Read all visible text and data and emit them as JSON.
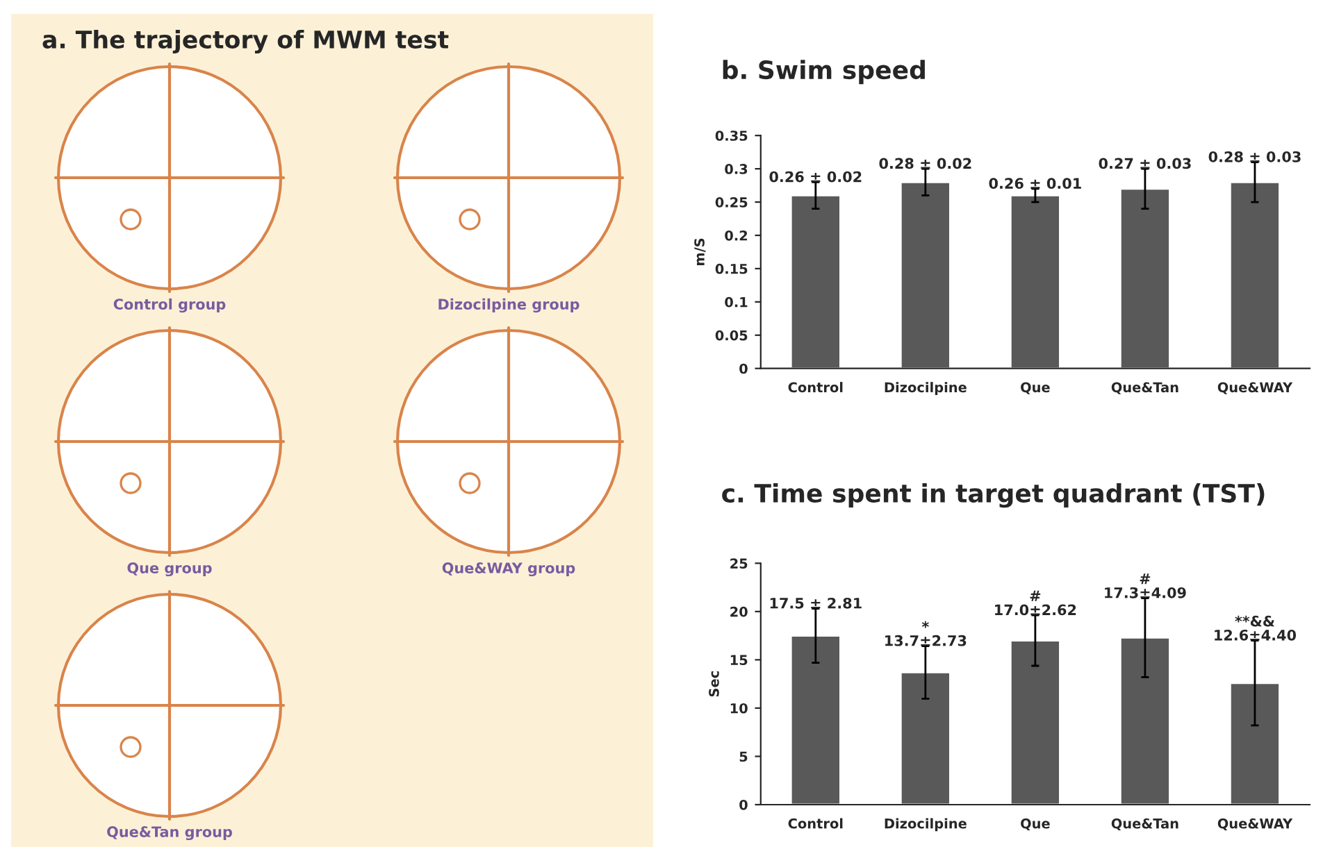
{
  "chart_data": [
    {
      "type": "other",
      "title": "a. The trajectory of MWM test",
      "annotations": [
        "Control group",
        "Dizocilpine group",
        "Que group",
        "Que&WAY group",
        "Que&Tan group"
      ]
    },
    {
      "type": "bar",
      "title": "b. Swim speed",
      "ylabel": "m/S",
      "categories": [
        "Control",
        "Dizocilpine",
        "Que",
        "Que&Tan",
        "Que&WAY"
      ],
      "values": [
        0.26,
        0.28,
        0.26,
        0.27,
        0.28
      ],
      "errors": [
        0.02,
        0.02,
        0.01,
        0.03,
        0.03
      ],
      "value_labels": [
        "0.26 ± 0.02",
        "0.28 ± 0.02",
        "0.26 ± 0.01",
        "0.27 ± 0.03",
        "0.28 ± 0.03"
      ],
      "color": "#595959",
      "ylim": [
        0,
        0.35
      ],
      "yticks": [
        0,
        0.05,
        0.1,
        0.15,
        0.2,
        0.25,
        0.3,
        0.35
      ],
      "grid": false,
      "legend": false
    },
    {
      "type": "bar",
      "title": "c. Time spent in target quadrant (TST)",
      "ylabel": "Sec",
      "categories": [
        "Control",
        "Dizocilpine",
        "Que",
        "Que&Tan",
        "Que&WAY"
      ],
      "values": [
        17.5,
        13.7,
        17.0,
        17.3,
        12.6
      ],
      "errors": [
        2.81,
        2.73,
        2.62,
        4.09,
        4.4
      ],
      "value_labels": [
        "17.5 ± 2.81",
        "*\n13.7±2.73",
        "#\n17.0±2.62",
        "#\n17.3±4.09",
        "**&&\n12.6±4.40"
      ],
      "color": "#595959",
      "ylim": [
        0,
        25
      ],
      "yticks": [
        0,
        5,
        10,
        15,
        20,
        25
      ],
      "grid": false,
      "legend": false
    }
  ]
}
